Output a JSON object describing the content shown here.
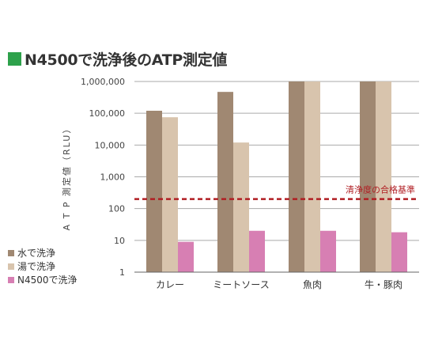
{
  "colors": {
    "title_marker": "#2da14b",
    "series": [
      "#a08872",
      "#d8c4ad",
      "#d77fb3"
    ],
    "reference_line": "#b01e23",
    "grid": "#aaaaaa",
    "axis": "#666666"
  },
  "chart_data": {
    "type": "bar",
    "title": "N4500で洗浄後のATP測定値",
    "ylabel": "A T P 測定値（RLU）",
    "xlabel": "",
    "yscale": "log",
    "ylim": [
      1,
      1000000
    ],
    "yticks": [
      1,
      10,
      100,
      1000,
      10000,
      100000,
      1000000
    ],
    "ytick_labels": [
      "1",
      "10",
      "100",
      "1,000",
      "10,000",
      "100,000",
      "1,000,000"
    ],
    "grid": true,
    "legend_position": "left",
    "categories": [
      "カレー",
      "ミートソース",
      "魚肉",
      "牛・豚肉"
    ],
    "series": [
      {
        "name": "水で洗浄",
        "values": [
          120000,
          470000,
          1000000,
          1000000
        ]
      },
      {
        "name": "湯で洗浄",
        "values": [
          75000,
          12000,
          1000000,
          1000000
        ]
      },
      {
        "name": "N4500で洗浄",
        "values": [
          9,
          20,
          20,
          18
        ]
      }
    ],
    "reference_line": {
      "value": 200,
      "label": "清浄度の合格基準",
      "style": "dashed"
    }
  }
}
